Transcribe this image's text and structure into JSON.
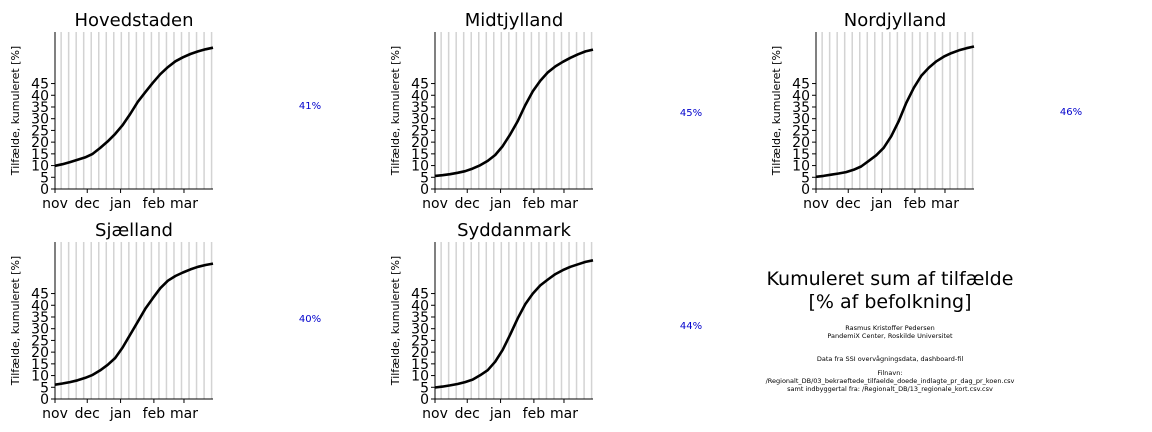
{
  "chart_data": [
    {
      "type": "line",
      "title": "Hovedstaden",
      "ylabel": "Tilfælde, kumuleret [%]",
      "x_ticks": [
        "nov",
        "dec",
        "jan",
        "feb",
        "mar"
      ],
      "y_ticks": [
        "0",
        "5",
        "10",
        "15",
        "20",
        "25",
        "30",
        "35",
        "40",
        "45"
      ],
      "ylim": [
        0,
        67
      ],
      "annotation": "41%",
      "x_days": [
        0,
        7,
        14,
        21,
        28,
        35,
        42,
        49,
        56,
        63,
        70,
        77,
        84,
        91,
        98,
        105,
        112,
        119,
        126,
        133,
        140,
        147
      ],
      "values": [
        9.9,
        10.6,
        11.5,
        12.5,
        13.5,
        15.0,
        17.5,
        20.3,
        23.5,
        27.3,
        32.0,
        37.2,
        41.3,
        45.3,
        49.0,
        52.0,
        54.5,
        56.2,
        57.6,
        58.7,
        59.6,
        60.3
      ]
    },
    {
      "type": "line",
      "title": "Midtjylland",
      "ylabel": "Tilfælde, kumuleret [%]",
      "x_ticks": [
        "nov",
        "dec",
        "jan",
        "feb",
        "mar"
      ],
      "y_ticks": [
        "0",
        "5",
        "10",
        "15",
        "20",
        "25",
        "30",
        "35",
        "40",
        "45"
      ],
      "ylim": [
        0,
        67
      ],
      "annotation": "45%",
      "x_days": [
        0,
        7,
        14,
        21,
        28,
        35,
        42,
        49,
        56,
        63,
        70,
        77,
        84,
        91,
        98,
        105,
        112,
        119,
        126,
        133,
        140,
        147
      ],
      "values": [
        5.6,
        5.9,
        6.3,
        6.9,
        7.6,
        8.7,
        10.1,
        12.0,
        14.5,
        18.3,
        23.3,
        29.0,
        35.8,
        41.7,
        46.2,
        49.8,
        52.3,
        54.3,
        56.0,
        57.5,
        58.7,
        59.5
      ]
    },
    {
      "type": "line",
      "title": "Nordjylland",
      "ylabel": "Tilfælde, kumuleret [%]",
      "x_ticks": [
        "nov",
        "dec",
        "jan",
        "feb",
        "mar"
      ],
      "y_ticks": [
        "0",
        "5",
        "10",
        "15",
        "20",
        "25",
        "30",
        "35",
        "40",
        "45"
      ],
      "ylim": [
        0,
        67
      ],
      "annotation": "46%",
      "x_days": [
        0,
        7,
        14,
        21,
        28,
        35,
        42,
        49,
        56,
        63,
        70,
        77,
        84,
        91,
        98,
        105,
        112,
        119,
        126,
        133,
        140,
        147
      ],
      "values": [
        5.2,
        5.6,
        6.1,
        6.6,
        7.2,
        8.2,
        9.6,
        12.0,
        14.4,
        17.6,
        22.5,
        29.0,
        36.8,
        43.2,
        48.3,
        51.8,
        54.5,
        56.5,
        58.0,
        59.2,
        60.1,
        60.8
      ]
    },
    {
      "type": "line",
      "title": "Sjælland",
      "ylabel": "Tilfælde, kumuleret [%]",
      "x_ticks": [
        "nov",
        "dec",
        "jan",
        "feb",
        "mar"
      ],
      "y_ticks": [
        "0",
        "5",
        "10",
        "15",
        "20",
        "25",
        "30",
        "35",
        "40",
        "45"
      ],
      "ylim": [
        0,
        67
      ],
      "annotation": "40%",
      "x_days": [
        0,
        7,
        14,
        21,
        28,
        35,
        42,
        49,
        56,
        63,
        70,
        77,
        84,
        91,
        98,
        105,
        112,
        119,
        126,
        133,
        140,
        147
      ],
      "values": [
        6.1,
        6.6,
        7.2,
        8.0,
        9.0,
        10.3,
        12.2,
        14.6,
        17.5,
        22.0,
        27.5,
        33.0,
        38.5,
        43.0,
        47.3,
        50.5,
        52.5,
        54.0,
        55.3,
        56.4,
        57.2,
        57.8
      ]
    },
    {
      "type": "line",
      "title": "Syddanmark",
      "ylabel": "Tilfælde, kumuleret [%]",
      "x_ticks": [
        "nov",
        "dec",
        "jan",
        "feb",
        "mar"
      ],
      "y_ticks": [
        "0",
        "5",
        "10",
        "15",
        "20",
        "25",
        "30",
        "35",
        "40",
        "45"
      ],
      "ylim": [
        0,
        67
      ],
      "annotation": "44%",
      "x_days": [
        0,
        7,
        14,
        21,
        28,
        35,
        42,
        49,
        56,
        63,
        70,
        77,
        84,
        91,
        98,
        105,
        112,
        119,
        126,
        133,
        140,
        147
      ],
      "values": [
        4.9,
        5.3,
        5.8,
        6.4,
        7.2,
        8.3,
        10.1,
        12.3,
        15.9,
        21.0,
        27.5,
        34.5,
        40.5,
        45.0,
        48.5,
        51.0,
        53.3,
        55.0,
        56.4,
        57.5,
        58.5,
        59.2
      ]
    }
  ],
  "info": {
    "title_line1": "Kumuleret sum af tilfælde",
    "title_line2": "[% af befolkning]",
    "author": "Rasmus Kristoffer Pedersen",
    "affiliation": "PandemiX Center, Roskilde Universitet",
    "data_source": "Data fra SSI overvågningsdata, dashboard-fil",
    "filename_label": "Filnavn:",
    "filename_1": "/Regionalt_DB/03_bekraeftede_tilfaelde_doede_indlagte_pr_dag_pr_koen.csv",
    "filename_2": "samt indbyggertal fra: /Regionalt_DB/13_regionale_kort.csv.csv"
  },
  "colors": {
    "line": "#000000",
    "weekend_band": "#d3d3d3",
    "annotation": "#0000cc"
  }
}
